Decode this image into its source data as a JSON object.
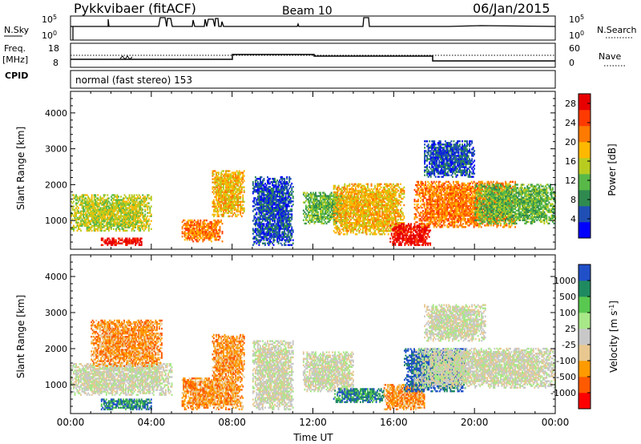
{
  "header": {
    "station": "Pykkvibaer (fitACF)",
    "beam": "Beam 10",
    "date": "06/Jan/2015"
  },
  "strip_panels": {
    "nsky": {
      "label": "N.Sky",
      "ticks": [
        "10^5",
        "10^0"
      ]
    },
    "nsearch": {
      "label": "N.Search",
      "ticks": [
        "10^5",
        "10^0"
      ]
    },
    "freq": {
      "label_line1": "Freq.",
      "label_line2": "[MHz]",
      "ticks": [
        "18",
        "8"
      ]
    },
    "nave": {
      "label": "Nave",
      "ticks": [
        "60",
        "0"
      ]
    },
    "cpid": {
      "label": "CPID",
      "text": "normal (fast stereo) 153"
    }
  },
  "colors": {
    "power_scale": [
      "#0000ff",
      "#1f4fb4",
      "#2f8a4f",
      "#58b848",
      "#b8cc20",
      "#ffb800",
      "#ff7a00",
      "#ff3a00",
      "#e80000"
    ],
    "velocity_scale": [
      "#ff0000",
      "#ff5a00",
      "#ff9a00",
      "#e8c890",
      "#c8c8c8",
      "#a8e888",
      "#58c850",
      "#1f8a60",
      "#2050c8"
    ]
  },
  "chart_data": [
    {
      "type": "heatmap",
      "title": "",
      "xlabel": "",
      "ylabel": "Slant Range [km]",
      "xlim": [
        0,
        24
      ],
      "ylim": [
        200,
        4600
      ],
      "x_ticks": [
        "00:00",
        "04:00",
        "08:00",
        "12:00",
        "16:00",
        "20:00",
        "00:00"
      ],
      "y_ticks": [
        1000,
        2000,
        3000,
        4000
      ],
      "colorbar": {
        "label": "Power [dB]",
        "ticks": [
          4,
          8,
          12,
          16,
          20,
          24,
          28
        ],
        "range": [
          0,
          30
        ]
      },
      "echo_regions": [
        {
          "t": [
            0.0,
            4.0
          ],
          "r": [
            700,
            1700
          ],
          "value": 14
        },
        {
          "t": [
            1.5,
            3.5
          ],
          "r": [
            300,
            500
          ],
          "value": 27
        },
        {
          "t": [
            5.5,
            7.5
          ],
          "r": [
            400,
            1000
          ],
          "value": 20
        },
        {
          "t": [
            7.0,
            8.6
          ],
          "r": [
            1100,
            2400
          ],
          "value": 18
        },
        {
          "t": [
            9.0,
            11.0
          ],
          "r": [
            300,
            2200
          ],
          "value": 6
        },
        {
          "t": [
            11.5,
            13.5
          ],
          "r": [
            900,
            1800
          ],
          "value": 10
        },
        {
          "t": [
            13.0,
            16.5
          ],
          "r": [
            600,
            2000
          ],
          "value": 18
        },
        {
          "t": [
            15.8,
            17.8
          ],
          "r": [
            300,
            900
          ],
          "value": 28
        },
        {
          "t": [
            17.0,
            22.0
          ],
          "r": [
            800,
            2100
          ],
          "value": 22
        },
        {
          "t": [
            17.5,
            20.0
          ],
          "r": [
            2200,
            3200
          ],
          "value": 6
        },
        {
          "t": [
            20.0,
            24.0
          ],
          "r": [
            900,
            2000
          ],
          "value": 12
        }
      ]
    },
    {
      "type": "heatmap",
      "title": "",
      "xlabel": "Time UT",
      "ylabel": "Slant Range [km]",
      "xlim": [
        0,
        24
      ],
      "ylim": [
        200,
        4600
      ],
      "x_ticks": [
        "00:00",
        "04:00",
        "08:00",
        "12:00",
        "16:00",
        "20:00",
        "00:00"
      ],
      "y_ticks": [
        1000,
        2000,
        3000,
        4000
      ],
      "colorbar": {
        "label": "Velocity [m s^-1]",
        "ticks": [
          1000,
          500,
          100,
          25,
          -25,
          -100,
          -500,
          -1000
        ]
      },
      "echo_regions": [
        {
          "t": [
            0.0,
            5.0
          ],
          "r": [
            700,
            1600
          ],
          "value": 0
        },
        {
          "t": [
            1.0,
            4.5
          ],
          "r": [
            1500,
            2800
          ],
          "value": -300
        },
        {
          "t": [
            1.5,
            4.0
          ],
          "r": [
            300,
            600
          ],
          "value": 150
        },
        {
          "t": [
            5.5,
            8.5
          ],
          "r": [
            300,
            1200
          ],
          "value": -300
        },
        {
          "t": [
            7.0,
            8.6
          ],
          "r": [
            1100,
            2400
          ],
          "value": -400
        },
        {
          "t": [
            9.0,
            11.0
          ],
          "r": [
            300,
            2200
          ],
          "value": 0
        },
        {
          "t": [
            11.5,
            14.0
          ],
          "r": [
            800,
            1900
          ],
          "value": 0
        },
        {
          "t": [
            13.0,
            15.5
          ],
          "r": [
            500,
            900
          ],
          "value": 200
        },
        {
          "t": [
            15.5,
            17.5
          ],
          "r": [
            300,
            1000
          ],
          "value": -500
        },
        {
          "t": [
            16.5,
            19.5
          ],
          "r": [
            800,
            2000
          ],
          "value": 700
        },
        {
          "t": [
            17.0,
            24.0
          ],
          "r": [
            900,
            2000
          ],
          "value": 0
        },
        {
          "t": [
            17.5,
            20.5
          ],
          "r": [
            2200,
            3200
          ],
          "value": 0
        }
      ]
    }
  ]
}
